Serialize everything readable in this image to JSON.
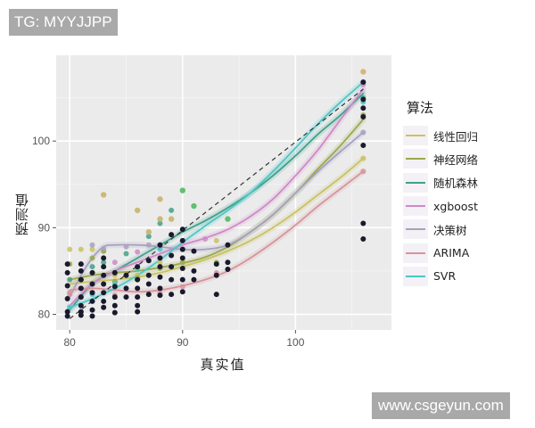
{
  "watermarks": {
    "top": "TG: MYYJJPP",
    "bottom": "www.csgeyun.com"
  },
  "chart_data": {
    "type": "scatter",
    "title": "",
    "xlabel": "真实值",
    "ylabel": "预测值",
    "xlim": [
      78.8,
      108.5
    ],
    "ylim": [
      78.2,
      109.9
    ],
    "x_ticks": [
      80,
      90,
      100
    ],
    "y_ticks": [
      80,
      90,
      100
    ],
    "grid": true,
    "panel_background": "#ebebeb",
    "legend": {
      "title": "算法",
      "position": "right"
    },
    "reference_line": {
      "style": "dashed",
      "color": "#333333",
      "points": [
        [
          80,
          79.5
        ],
        [
          106,
          106
        ]
      ]
    },
    "series": [
      {
        "name": "线性回归",
        "color": "#c9c262",
        "curve": [
          [
            80,
            83.5
          ],
          [
            82,
            83.8
          ],
          [
            84,
            84.0
          ],
          [
            86,
            84.3
          ],
          [
            88,
            84.8
          ],
          [
            90,
            85.5
          ],
          [
            92,
            86.3
          ],
          [
            94,
            87.3
          ],
          [
            96,
            88.5
          ],
          [
            98,
            90.0
          ],
          [
            100,
            91.8
          ],
          [
            102,
            93.8
          ],
          [
            104,
            95.8
          ],
          [
            106,
            98.0
          ]
        ],
        "points": [
          [
            80,
            87.5
          ],
          [
            81,
            87.5
          ],
          [
            82,
            87.5
          ],
          [
            83,
            87.3
          ],
          [
            84,
            84.5
          ],
          [
            86,
            84.5
          ],
          [
            88,
            86
          ],
          [
            90,
            86
          ],
          [
            93,
            88.5
          ],
          [
            106,
            98.0
          ]
        ]
      },
      {
        "name": "神经网络",
        "color": "#9aa84a",
        "curve": [
          [
            80,
            84.0
          ],
          [
            82,
            84.5
          ],
          [
            84,
            84.8
          ],
          [
            86,
            85.0
          ],
          [
            88,
            85.4
          ],
          [
            90,
            85.9
          ],
          [
            92,
            86.6
          ],
          [
            94,
            87.8
          ],
          [
            96,
            89.5
          ],
          [
            98,
            91.5
          ],
          [
            100,
            94.0
          ],
          [
            102,
            96.8
          ],
          [
            104,
            99.5
          ],
          [
            106,
            102.5
          ]
        ],
        "points": [
          [
            80,
            85.8
          ],
          [
            81,
            85.8
          ],
          [
            82,
            86.5
          ],
          [
            83,
            87.3
          ],
          [
            84,
            83.8
          ],
          [
            86,
            84.2
          ],
          [
            88,
            85.3
          ],
          [
            90,
            86.0
          ],
          [
            93,
            86.0
          ],
          [
            106,
            103.0
          ]
        ]
      },
      {
        "name": "随机森林",
        "color": "#3fa28a",
        "curve": [
          [
            80,
            80.5
          ],
          [
            82,
            83.5
          ],
          [
            84,
            85.0
          ],
          [
            86,
            86.5
          ],
          [
            88,
            88.0
          ],
          [
            90,
            89.5
          ],
          [
            92,
            90.8
          ],
          [
            94,
            92.3
          ],
          [
            96,
            94.0
          ],
          [
            98,
            96.0
          ],
          [
            100,
            98.3
          ],
          [
            102,
            100.8
          ],
          [
            104,
            103.0
          ],
          [
            106,
            105.5
          ]
        ],
        "points": [
          [
            80,
            84.0
          ],
          [
            81,
            84.0
          ],
          [
            82,
            85.5
          ],
          [
            83,
            86.0
          ],
          [
            85,
            87.0
          ],
          [
            87,
            89.0
          ],
          [
            88,
            90.5
          ],
          [
            89,
            92.0
          ],
          [
            90,
            94.3
          ],
          [
            91,
            92.5
          ],
          [
            94,
            91.0
          ],
          [
            106,
            105.0
          ]
        ]
      },
      {
        "name": "xgboost",
        "color": "#d088c8",
        "curve": [
          [
            80,
            81.0
          ],
          [
            82,
            83.5
          ],
          [
            84,
            85.0
          ],
          [
            86,
            86.0
          ],
          [
            88,
            87.0
          ],
          [
            90,
            88.0
          ],
          [
            92,
            88.8
          ],
          [
            94,
            89.8
          ],
          [
            96,
            91.3
          ],
          [
            98,
            93.3
          ],
          [
            100,
            96.0
          ],
          [
            102,
            99.0
          ],
          [
            104,
            102.5
          ],
          [
            106,
            106.0
          ]
        ],
        "points": [
          [
            80,
            82.3
          ],
          [
            82,
            84.8
          ],
          [
            84,
            86.0
          ],
          [
            86,
            87.2
          ],
          [
            88,
            88.0
          ],
          [
            90,
            88.5
          ],
          [
            92,
            88.7
          ],
          [
            106,
            106.5
          ]
        ]
      },
      {
        "name": "决策树",
        "color": "#a7a1c0",
        "curve": [
          [
            80,
            82.0
          ],
          [
            81,
            84.5
          ],
          [
            82,
            86.5
          ],
          [
            83,
            87.8
          ],
          [
            84,
            88.0
          ],
          [
            86,
            88.0
          ],
          [
            88,
            87.8
          ],
          [
            90,
            87.5
          ],
          [
            92,
            87.5
          ],
          [
            94,
            88.0
          ],
          [
            96,
            89.5
          ],
          [
            98,
            91.5
          ],
          [
            100,
            94.0
          ],
          [
            102,
            96.5
          ],
          [
            104,
            98.8
          ],
          [
            106,
            101.0
          ]
        ],
        "points": [
          [
            82,
            88.0
          ],
          [
            83,
            87.6
          ],
          [
            85,
            87.8
          ],
          [
            87,
            88.0
          ],
          [
            90,
            87.5
          ],
          [
            106,
            101.0
          ]
        ]
      },
      {
        "name": "ARIMA",
        "color": "#d7939a",
        "curve": [
          [
            80,
            82.8
          ],
          [
            82,
            83.0
          ],
          [
            84,
            82.8
          ],
          [
            86,
            82.6
          ],
          [
            88,
            82.8
          ],
          [
            90,
            83.3
          ],
          [
            92,
            84.0
          ],
          [
            94,
            85.0
          ],
          [
            96,
            86.5
          ],
          [
            98,
            88.3
          ],
          [
            100,
            90.3
          ],
          [
            102,
            92.5
          ],
          [
            104,
            94.5
          ],
          [
            106,
            96.5
          ]
        ],
        "points": [
          [
            80,
            82.5
          ],
          [
            81,
            83.0
          ],
          [
            82,
            82.5
          ],
          [
            84,
            82.2
          ],
          [
            86,
            82.0
          ],
          [
            88,
            82.5
          ],
          [
            90,
            83.2
          ],
          [
            93,
            84.8
          ],
          [
            106,
            96.5
          ]
        ]
      },
      {
        "name": "SVR",
        "color": "#4ec6c6",
        "curve": [
          [
            80,
            80.8
          ],
          [
            82,
            81.8
          ],
          [
            84,
            83.0
          ],
          [
            86,
            84.5
          ],
          [
            88,
            86.3
          ],
          [
            90,
            88.3
          ],
          [
            92,
            90.2
          ],
          [
            94,
            92.0
          ],
          [
            96,
            94.0
          ],
          [
            98,
            96.5
          ],
          [
            100,
            99.2
          ],
          [
            102,
            102.0
          ],
          [
            104,
            104.5
          ],
          [
            106,
            106.8
          ]
        ],
        "points": [
          [
            80,
            80.8
          ],
          [
            82,
            82.3
          ],
          [
            84,
            83.5
          ],
          [
            86,
            85.2
          ],
          [
            88,
            87.5
          ],
          [
            90,
            89.8
          ],
          [
            106,
            104.5
          ]
        ]
      }
    ],
    "actual_points_color": "#1a1a2e",
    "actual_points": [
      [
        79.8,
        85.8
      ],
      [
        79.8,
        84.8
      ],
      [
        79.8,
        83.3
      ],
      [
        79.8,
        81.8
      ],
      [
        79.8,
        80.3
      ],
      [
        79.8,
        79.8
      ],
      [
        81.0,
        85.8
      ],
      [
        81.0,
        85.0
      ],
      [
        81.0,
        84.0
      ],
      [
        81.0,
        83.0
      ],
      [
        81.0,
        82.0
      ],
      [
        81.0,
        81.0
      ],
      [
        81.0,
        80.3
      ],
      [
        81.0,
        79.9
      ],
      [
        82.0,
        84.8
      ],
      [
        82.0,
        83.5
      ],
      [
        82.0,
        82.5
      ],
      [
        82.0,
        81.5
      ],
      [
        82.0,
        80.5
      ],
      [
        82.0,
        79.8
      ],
      [
        83.0,
        86.5
      ],
      [
        83.0,
        85.5
      ],
      [
        83.0,
        84.5
      ],
      [
        83.0,
        83.5
      ],
      [
        83.0,
        82.5
      ],
      [
        83.0,
        81.5
      ],
      [
        83.0,
        80.8
      ],
      [
        84.0,
        84.8
      ],
      [
        84.0,
        83.2
      ],
      [
        84.0,
        82.0
      ],
      [
        84.0,
        81.0
      ],
      [
        84.0,
        80.2
      ],
      [
        85.0,
        84.5
      ],
      [
        85.0,
        83.0
      ],
      [
        85.0,
        82.0
      ],
      [
        86.0,
        85.5
      ],
      [
        86.0,
        84.0
      ],
      [
        86.0,
        83.0
      ],
      [
        86.0,
        82.0
      ],
      [
        86.0,
        81.0
      ],
      [
        86.0,
        80.3
      ],
      [
        87.0,
        86.2
      ],
      [
        87.0,
        84.5
      ],
      [
        87.0,
        83.5
      ],
      [
        87.0,
        82.3
      ],
      [
        88.0,
        88.0
      ],
      [
        88.0,
        86.5
      ],
      [
        88.0,
        85.5
      ],
      [
        88.0,
        84.3
      ],
      [
        88.0,
        83.0
      ],
      [
        88.0,
        82.2
      ],
      [
        89.0,
        89.2
      ],
      [
        89.0,
        86.8
      ],
      [
        89.0,
        85.5
      ],
      [
        89.0,
        84.0
      ],
      [
        89.0,
        82.3
      ],
      [
        90.0,
        89.8
      ],
      [
        90.0,
        88.5
      ],
      [
        90.0,
        87.5
      ],
      [
        90.0,
        86.5
      ],
      [
        90.0,
        85.3
      ],
      [
        90.0,
        84.0
      ],
      [
        90.0,
        82.6
      ],
      [
        91.0,
        87.3
      ],
      [
        91.0,
        85.0
      ],
      [
        91.0,
        84.0
      ],
      [
        93.0,
        85.8
      ],
      [
        93.0,
        84.5
      ],
      [
        93.0,
        82.3
      ],
      [
        94.0,
        88.0
      ],
      [
        94.0,
        86.0
      ],
      [
        94.0,
        85.2
      ],
      [
        106.0,
        106.8
      ],
      [
        106.0,
        104.8
      ],
      [
        106.0,
        103.8
      ],
      [
        106.0,
        102.8
      ],
      [
        106.0,
        99.5
      ],
      [
        106.0,
        90.5
      ],
      [
        106.0,
        88.7
      ]
    ],
    "outlier_points": [
      {
        "x": 83.0,
        "y": 93.8,
        "color": "#c8b46a"
      },
      {
        "x": 86.0,
        "y": 92.0,
        "color": "#c8b46a"
      },
      {
        "x": 88.0,
        "y": 93.3,
        "color": "#c8b46a"
      },
      {
        "x": 88.0,
        "y": 91.0,
        "color": "#c8b46a"
      },
      {
        "x": 87.0,
        "y": 89.5,
        "color": "#c8b46a"
      },
      {
        "x": 89.0,
        "y": 91.0,
        "color": "#c8b46a"
      },
      {
        "x": 90.0,
        "y": 94.3,
        "color": "#62c26a"
      },
      {
        "x": 91.0,
        "y": 92.5,
        "color": "#62c26a"
      },
      {
        "x": 94.0,
        "y": 91.0,
        "color": "#62c26a"
      },
      {
        "x": 106.0,
        "y": 108.0,
        "color": "#d4b070"
      }
    ]
  }
}
